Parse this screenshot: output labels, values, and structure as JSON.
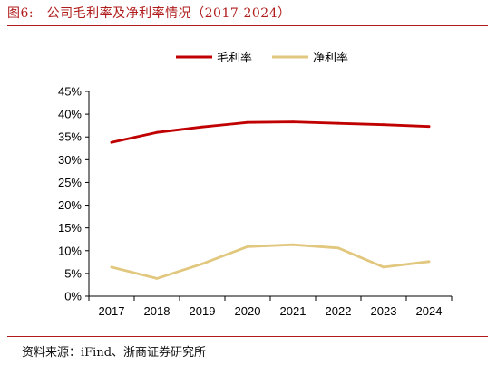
{
  "figure": {
    "title": "图6:　公司毛利率及净利率情况（2017-2024）",
    "source": "资料来源：iFind、浙商证券研究所",
    "accent_color": "#b01c1c"
  },
  "chart_data": {
    "type": "line",
    "title": "",
    "xlabel": "",
    "ylabel": "",
    "categories": [
      "2017",
      "2018",
      "2019",
      "2020",
      "2021",
      "2022",
      "2023",
      "2024"
    ],
    "ylim": [
      0,
      45
    ],
    "y_ticks": [
      "0%",
      "5%",
      "10%",
      "15%",
      "20%",
      "25%",
      "30%",
      "35%",
      "40%",
      "45%"
    ],
    "grid": false,
    "legend_position": "top-center",
    "series": [
      {
        "name": "毛利率",
        "color": "#c00000",
        "values": [
          33.8,
          36.0,
          37.2,
          38.2,
          38.3,
          38.0,
          37.7,
          37.3
        ]
      },
      {
        "name": "净利率",
        "color": "#e2c77f",
        "values": [
          6.4,
          3.9,
          7.1,
          10.9,
          11.3,
          10.6,
          6.4,
          7.6
        ]
      }
    ]
  }
}
